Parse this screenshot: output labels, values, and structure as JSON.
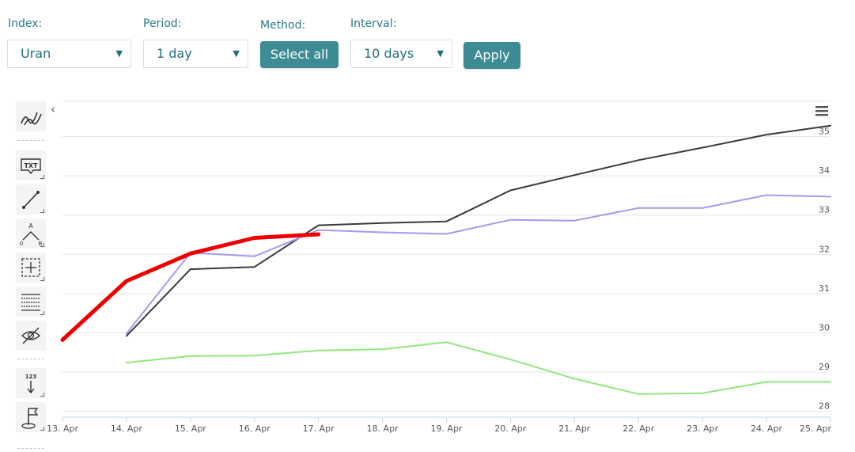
{
  "controls": {
    "index_label": "Index:",
    "index_value": "Uran",
    "period_label": "Period:",
    "period_value": "1 day",
    "method_label": "Method:",
    "method_button": "Select all",
    "interval_label": "Interval:",
    "interval_value": "10 days",
    "apply_button": "Apply",
    "dropdown_arrow": "▼"
  },
  "toolbar": {
    "icons": [
      "trend-lines-icon",
      "text-label-icon",
      "line-segment-icon",
      "pattern-abc-icon",
      "crosshair-measure-icon",
      "fibonacci-grid-icon",
      "hide-eye-icon",
      "counter-123-icon",
      "flag-icon"
    ],
    "txt_label": "TXT",
    "counter_label": "123",
    "collapse_glyph": "‹"
  },
  "menu_icon": "hamburger-menu-icon",
  "chart_data": {
    "type": "line",
    "x": [
      "13. Apr",
      "14. Apr",
      "15. Apr",
      "16. Apr",
      "17. Apr",
      "18. Apr",
      "19. Apr",
      "20. Apr",
      "21. Apr",
      "22. Apr",
      "23. Apr",
      "24. Apr",
      "25. Apr"
    ],
    "yticks": [
      28,
      29,
      30,
      31,
      32,
      33,
      34,
      35
    ],
    "ylim": [
      27.85,
      35.9
    ],
    "y_axis_side": "right",
    "grid": true,
    "legend": "none",
    "series": [
      {
        "color": "#3a3a3a",
        "width": 2,
        "points": [
          [
            1,
            29.92
          ],
          [
            2,
            31.62
          ],
          [
            3,
            31.68
          ],
          [
            4,
            32.74
          ],
          [
            5,
            32.8
          ],
          [
            6,
            32.84
          ],
          [
            7,
            33.63
          ],
          [
            8,
            34.02
          ],
          [
            9,
            34.4
          ],
          [
            10,
            34.72
          ],
          [
            11,
            35.05
          ],
          [
            12,
            35.28
          ]
        ]
      },
      {
        "color": "#a59aec",
        "width": 2,
        "points": [
          [
            1,
            29.98
          ],
          [
            2,
            32.04
          ],
          [
            3,
            31.95
          ],
          [
            4,
            32.62
          ],
          [
            5,
            32.56
          ],
          [
            6,
            32.52
          ],
          [
            7,
            32.88
          ],
          [
            8,
            32.86
          ],
          [
            9,
            33.18
          ],
          [
            10,
            33.18
          ],
          [
            11,
            33.51
          ],
          [
            12,
            33.47
          ]
        ]
      },
      {
        "color": "#8fe87c",
        "width": 2,
        "points": [
          [
            1,
            29.24
          ],
          [
            2,
            29.41
          ],
          [
            3,
            29.42
          ],
          [
            4,
            29.55
          ],
          [
            5,
            29.58
          ],
          [
            6,
            29.76
          ],
          [
            7,
            29.32
          ],
          [
            8,
            28.83
          ],
          [
            9,
            28.44
          ],
          [
            10,
            28.46
          ],
          [
            11,
            28.75
          ],
          [
            12,
            28.75
          ]
        ]
      },
      {
        "color": "#ee0000",
        "width": 5,
        "points": [
          [
            0.0,
            29.82
          ],
          [
            1,
            31.32
          ],
          [
            2,
            32.02
          ],
          [
            3,
            32.42
          ],
          [
            4,
            32.51
          ]
        ]
      }
    ]
  }
}
